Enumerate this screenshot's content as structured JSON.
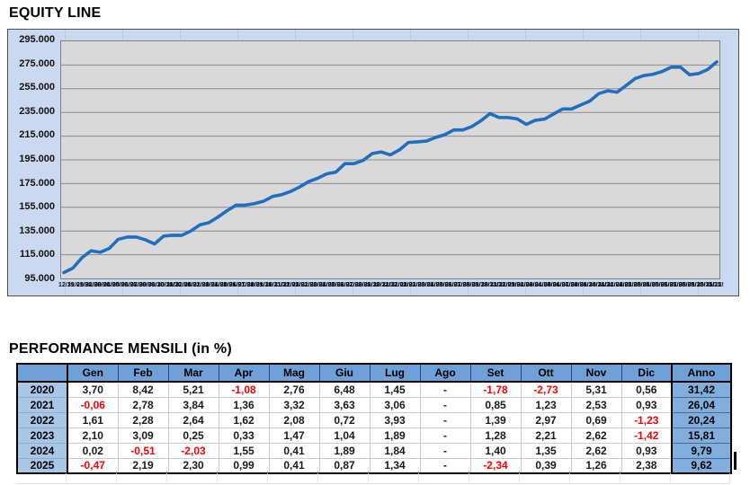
{
  "equity_chart": {
    "title": "EQUITY LINE"
  },
  "performance_table": {
    "title": "PERFORMANCE MENSILI (in %)"
  },
  "colors": {
    "chart_bg": "#c9d9f1",
    "plot_bg": "#d9d9d9",
    "line_blue": "#1f6fc0",
    "header_blue": "#6fa0d8",
    "year_blue": "#a9c6e6",
    "anno_blue": "#82aede",
    "negative_red": "#ff0000",
    "grid_gray": "#8a8a8a"
  },
  "chart_data": [
    {
      "type": "line",
      "title": "EQUITY LINE",
      "xlabel": "",
      "ylabel": "",
      "ylim": [
        95000,
        295000
      ],
      "y_tick_step": 20000,
      "grid": true,
      "legend": false,
      "y_tick_labels": [
        "295.000",
        "275.000",
        "255.000",
        "235.000",
        "215.000",
        "195.000",
        "175.000",
        "155.000",
        "135.000",
        "115.000",
        "95.000"
      ],
      "x_labels": [
        "12/19",
        "31/01/20",
        "29/02/20",
        "31/03/20",
        "30/04/20",
        "31/05/20",
        "30/06/20",
        "31/07/20",
        "31/08/20",
        "30/09/20",
        "31/10/20",
        "30/11/20",
        "31/12/20",
        "31/01/21",
        "28/02/21",
        "31/03/21",
        "30/04/21",
        "31/05/21",
        "30/06/21",
        "31/07/21",
        "31/08/21",
        "30/09/21",
        "31/10/21",
        "30/11/21",
        "31/12/21",
        "31/01/22",
        "28/02/22",
        "31/03/22",
        "30/04/22",
        "31/05/22",
        "30/06/22",
        "31/07/22",
        "31/08/22",
        "30/09/22",
        "31/10/22",
        "30/11/22",
        "31/12/22",
        "31/01/23",
        "28/02/23",
        "31/03/23",
        "30/04/23",
        "31/05/23",
        "30/06/23",
        "31/07/23",
        "31/08/23",
        "30/09/23",
        "31/10/23",
        "30/11/23",
        "31/12/23",
        "31/01/24",
        "29/02/24",
        "31/03/24",
        "30/04/24",
        "31/05/24",
        "30/06/24",
        "31/07/24",
        "31/08/24",
        "30/09/24",
        "31/10/24",
        "30/11/24",
        "31/12/24",
        "31/01/25",
        "28/02/25",
        "31/03/25",
        "30/04/25",
        "31/05/25",
        "30/06/25",
        "31/07/25",
        "31/08/25",
        "30/09/25",
        "31/10/25",
        "30/11/25",
        "31/12/25"
      ],
      "values": [
        100000,
        103700,
        112432,
        118289,
        117012,
        120241,
        128033,
        129889,
        129889,
        127577,
        124094,
        130684,
        131416,
        131337,
        134988,
        140171,
        142078,
        146795,
        152123,
        156778,
        156778,
        158111,
        160056,
        164105,
        165631,
        168298,
        172135,
        176680,
        179542,
        183276,
        184596,
        191850,
        191850,
        194517,
        200294,
        201676,
        199196,
        203379,
        209663,
        210187,
        210881,
        213981,
        216206,
        220293,
        220293,
        223112,
        228043,
        234018,
        230695,
        230741,
        229564,
        224904,
        228390,
        229327,
        233661,
        237960,
        237960,
        241292,
        244549,
        250956,
        253290,
        252100,
        257621,
        263546,
        266155,
        267246,
        269571,
        273184,
        273184,
        266791,
        267832,
        271206,
        277661
      ]
    },
    {
      "type": "table",
      "title": "PERFORMANCE MENSILI (in %)",
      "columns": [
        "",
        "Gen",
        "Feb",
        "Mar",
        "Apr",
        "Mag",
        "Giu",
        "Lug",
        "Ago",
        "Set",
        "Ott",
        "Nov",
        "Dic",
        "Anno"
      ],
      "rows": [
        {
          "year": "2020",
          "values": [
            "3,70",
            "8,42",
            "5,21",
            "-1,08",
            "2,76",
            "6,48",
            "1,45",
            "-",
            "-1,78",
            "-2,73",
            "5,31",
            "0,56",
            "31,42"
          ]
        },
        {
          "year": "2021",
          "values": [
            "-0,06",
            "2,78",
            "3,84",
            "1,36",
            "3,32",
            "3,63",
            "3,06",
            "-",
            "0,85",
            "1,23",
            "2,53",
            "0,93",
            "26,04"
          ]
        },
        {
          "year": "2022",
          "values": [
            "1,61",
            "2,28",
            "2,64",
            "1,62",
            "2,08",
            "0,72",
            "3,93",
            "-",
            "1,39",
            "2,97",
            "0,69",
            "-1,23",
            "20,24"
          ]
        },
        {
          "year": "2023",
          "values": [
            "2,10",
            "3,09",
            "0,25",
            "0,33",
            "1,47",
            "1,04",
            "1,89",
            "-",
            "1,28",
            "2,21",
            "2,62",
            "-1,42",
            "15,81"
          ]
        },
        {
          "year": "2024",
          "values": [
            "0,02",
            "-0,51",
            "-2,03",
            "1,55",
            "0,41",
            "1,89",
            "1,84",
            "-",
            "1,40",
            "1,35",
            "2,62",
            "0,93",
            "9,79"
          ]
        },
        {
          "year": "2025",
          "values": [
            "-0,47",
            "2,19",
            "2,30",
            "0,99",
            "0,41",
            "0,87",
            "1,34",
            "-",
            "-2,34",
            "0,39",
            "1,26",
            "2,38",
            "9,62"
          ]
        }
      ]
    }
  ]
}
